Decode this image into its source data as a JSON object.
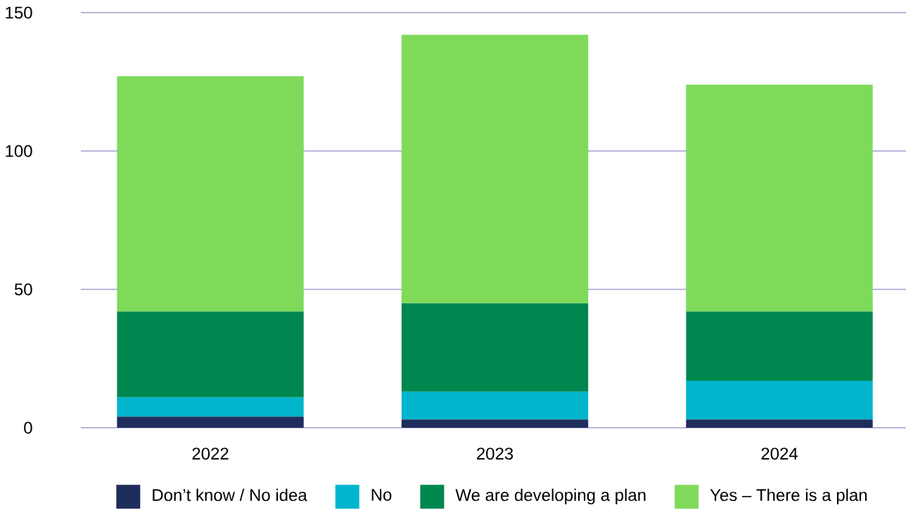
{
  "chart_data": {
    "type": "bar",
    "stacked": true,
    "categories": [
      "2022",
      "2023",
      "2024"
    ],
    "series": [
      {
        "name": "Don’t know / No idea",
        "color": "#1f2d5c",
        "values": [
          4,
          3,
          3
        ]
      },
      {
        "name": "No",
        "color": "#00b5cc",
        "values": [
          7,
          10,
          14
        ]
      },
      {
        "name": "We are developing a plan",
        "color": "#00874f",
        "values": [
          31,
          32,
          25
        ]
      },
      {
        "name": "Yes – There is a plan",
        "color": "#7fda5a",
        "values": [
          85,
          97,
          82
        ]
      }
    ],
    "ylim": [
      0,
      150
    ],
    "yticks": [
      0,
      50,
      100,
      150
    ],
    "grid": "y",
    "legend": "bottom"
  }
}
